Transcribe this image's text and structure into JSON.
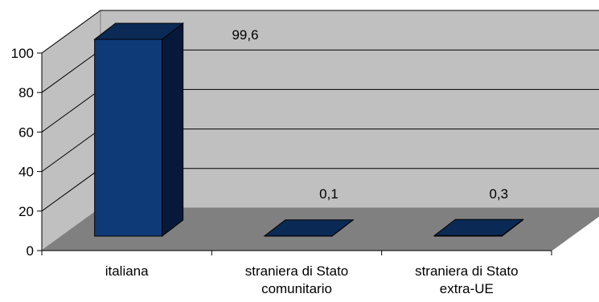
{
  "chart_data": {
    "type": "bar",
    "three_d": true,
    "categories": [
      [
        "italiana"
      ],
      [
        "straniera di Stato",
        "comunitario"
      ],
      [
        "straniera di Stato",
        "extra-UE"
      ]
    ],
    "values": [
      99.6,
      0.1,
      0.3
    ],
    "data_labels": [
      "99,6",
      "0,1",
      "0,3"
    ],
    "y_ticks": [
      "0",
      "20",
      "40",
      "60",
      "80",
      "100"
    ],
    "ylim": [
      0,
      100
    ],
    "grid": true,
    "legend": false,
    "colors": {
      "bar_front": "#0f3a78",
      "bar_top": "#0a2a55",
      "bar_side": "#06193a",
      "back_wall": "#c0c0c0",
      "side_wall": "#c0c0c0",
      "floor": "#808080",
      "gridline": "#000000"
    }
  }
}
